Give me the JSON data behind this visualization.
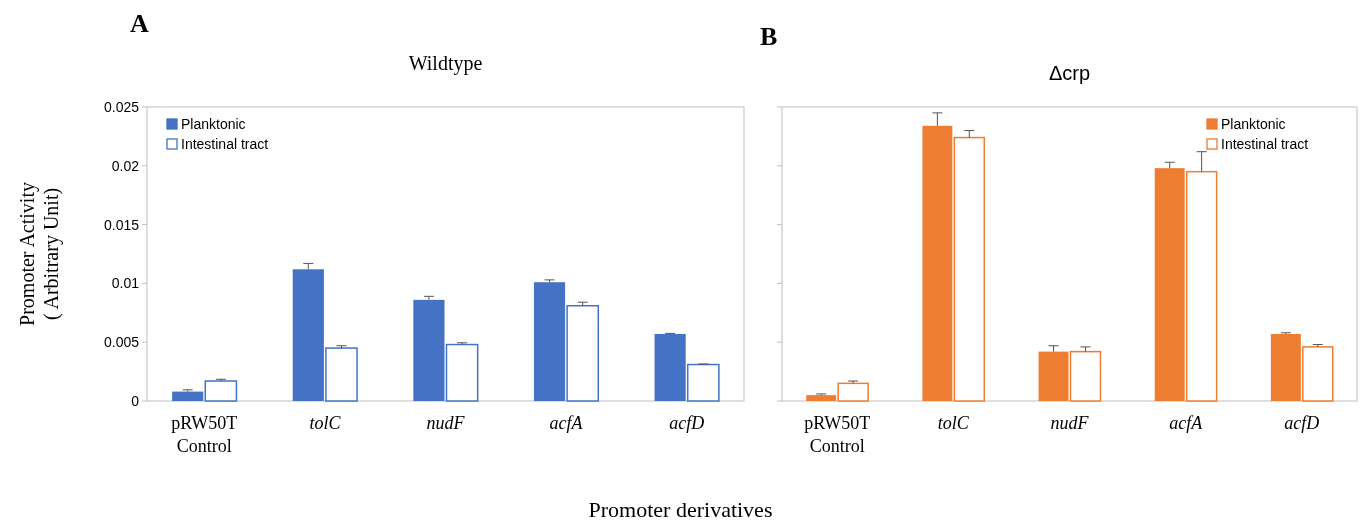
{
  "chart_data": [
    {
      "type": "bar",
      "title": "Wildtype",
      "ylabel": "Promoter Activity\n( Arbitrary Unit)",
      "xlabel": "Promoter derivatives",
      "annotations": [
        "A"
      ],
      "categories": [
        "pRW50T\nControl",
        "tolC",
        "nudF",
        "acfA",
        "acfD"
      ],
      "ylim": [
        0,
        0.025
      ],
      "yticks": [
        0,
        0.005,
        0.01,
        0.015,
        0.02,
        0.025
      ],
      "legend": "top left",
      "series": [
        {
          "name": "Planktonic",
          "color": "#4472c4",
          "values": [
            0.0008,
            0.0112,
            0.0086,
            0.0101,
            0.0057
          ],
          "errors": [
            [
              0.0008,
              0.00095
            ],
            [
              0.0112,
              0.0117
            ],
            [
              0.0086,
              0.0089
            ],
            [
              0.0101,
              0.0103
            ],
            [
              0.0057,
              0.00575
            ]
          ]
        },
        {
          "name": "Intestinal tract",
          "color": "#4472c4",
          "values": [
            0.0017,
            0.0045,
            0.0048,
            0.0081,
            0.0031
          ],
          "errors": [
            [
              0.0017,
              0.00185
            ],
            [
              0.0045,
              0.0047
            ],
            [
              0.0048,
              0.00495
            ],
            [
              0.0081,
              0.0084
            ],
            [
              0.0031,
              0.00315
            ]
          ]
        }
      ]
    },
    {
      "type": "bar",
      "title": "Δcrp",
      "annotations": [
        "B"
      ],
      "categories": [
        "pRW50T\nControl",
        "tolC",
        "nudF",
        "acfA",
        "acfD"
      ],
      "ylim": [
        0,
        0.025
      ],
      "yticks": [
        {
          "value": 0,
          "label": null
        },
        {
          "value": 0.005,
          "label": null
        },
        {
          "value": 0.01,
          "label": null
        },
        {
          "value": 0.015,
          "label": null
        },
        {
          "value": 0.02,
          "label": null
        },
        {
          "value": 0.025,
          "label": null
        }
      ],
      "tick_labels": "x",
      "legend": "top right",
      "series": [
        {
          "name": "Planktonic",
          "color": "#ed7d31",
          "values": [
            0.0005,
            0.0234,
            0.0042,
            0.0198,
            0.0057
          ],
          "errors": [
            [
              0.0005,
              0.0006
            ],
            [
              0.0234,
              0.0245
            ],
            [
              0.0042,
              0.0047
            ],
            [
              0.0198,
              0.0203
            ],
            [
              0.0057,
              0.0058
            ]
          ]
        },
        {
          "name": "Intestinal tract",
          "color": "#ed7d31",
          "values": [
            0.0015,
            0.0224,
            0.0042,
            0.0195,
            0.0046
          ],
          "errors": [
            [
              0.0015,
              0.0017
            ],
            [
              0.0224,
              0.023
            ],
            [
              0.0042,
              0.0046
            ],
            [
              0.0195,
              0.0212
            ],
            [
              0.0046,
              0.0048
            ]
          ]
        }
      ]
    }
  ]
}
